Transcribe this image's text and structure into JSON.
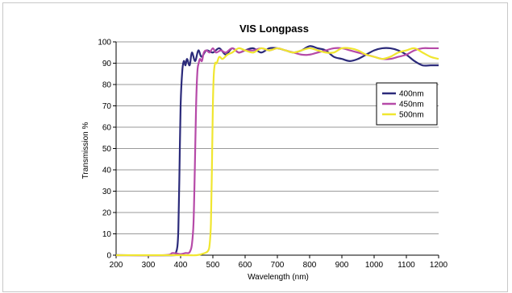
{
  "chart_data": {
    "type": "line",
    "title": "VIS Longpass",
    "xlabel": "Wavelength (nm)",
    "ylabel": "Transmission %",
    "xlim": [
      200,
      1200
    ],
    "ylim": [
      0,
      100
    ],
    "xticks": [
      200,
      300,
      400,
      500,
      600,
      700,
      800,
      900,
      1000,
      1100,
      1200
    ],
    "yticks": [
      0,
      10,
      20,
      30,
      40,
      50,
      60,
      70,
      80,
      90,
      100
    ],
    "grid": "horizontal",
    "legend_position": "right",
    "series": [
      {
        "name": "400nm",
        "color": "#2b2a7a",
        "x": [
          200,
          380,
          385,
          390,
          393,
          396,
          400,
          405,
          410,
          415,
          420,
          428,
          435,
          445,
          455,
          465,
          480,
          500,
          520,
          540,
          560,
          580,
          600,
          625,
          650,
          675,
          700,
          725,
          750,
          775,
          800,
          825,
          850,
          875,
          900,
          925,
          950,
          975,
          1000,
          1025,
          1050,
          1075,
          1100,
          1125,
          1150,
          1175,
          1200
        ],
        "y": [
          0,
          0,
          1,
          4,
          12,
          35,
          70,
          86,
          91,
          89,
          92,
          89,
          95,
          91,
          96,
          93,
          96,
          95,
          97,
          94,
          97,
          95,
          96,
          97,
          95,
          97,
          97,
          96,
          95,
          96,
          98,
          97,
          96,
          93,
          92,
          91,
          92,
          94,
          96,
          97,
          97,
          96,
          94,
          91,
          89,
          89,
          89
        ]
      },
      {
        "name": "450nm",
        "color": "#b64aa8",
        "x": [
          200,
          350,
          375,
          400,
          415,
          425,
          430,
          435,
          440,
          444,
          448,
          452,
          456,
          460,
          466,
          472,
          480,
          490,
          500,
          510,
          525,
          540,
          560,
          580,
          600,
          625,
          650,
          675,
          700,
          725,
          750,
          775,
          800,
          825,
          850,
          875,
          900,
          925,
          950,
          975,
          1000,
          1025,
          1050,
          1075,
          1100,
          1125,
          1150,
          1175,
          1200
        ],
        "y": [
          0,
          0,
          1,
          0.5,
          1,
          1,
          2,
          5,
          15,
          40,
          70,
          86,
          90,
          92,
          91,
          95,
          96,
          95,
          97,
          95,
          96,
          95,
          97,
          95,
          96,
          96,
          97,
          96,
          97,
          96,
          95,
          94,
          94,
          95,
          96,
          97,
          97,
          96,
          95,
          94,
          93,
          92,
          92,
          93,
          94,
          96,
          97,
          97,
          97
        ]
      },
      {
        "name": "500nm",
        "color": "#f0e630",
        "x": [
          200,
          400,
          450,
          475,
          485,
          490,
          494,
          497,
          500,
          503,
          507,
          512,
          520,
          530,
          545,
          560,
          580,
          600,
          625,
          650,
          675,
          700,
          725,
          750,
          775,
          800,
          825,
          850,
          875,
          900,
          925,
          950,
          975,
          1000,
          1025,
          1050,
          1075,
          1100,
          1125,
          1150,
          1175,
          1200
        ],
        "y": [
          0,
          0,
          0,
          1,
          2,
          5,
          15,
          40,
          70,
          85,
          90,
          90,
          93,
          92,
          94,
          95,
          97,
          96,
          95,
          97,
          96,
          97,
          96,
          95,
          96,
          97,
          96,
          95,
          95,
          97,
          97,
          96,
          94,
          93,
          92,
          93,
          95,
          96,
          97,
          95,
          93,
          92
        ]
      }
    ]
  }
}
